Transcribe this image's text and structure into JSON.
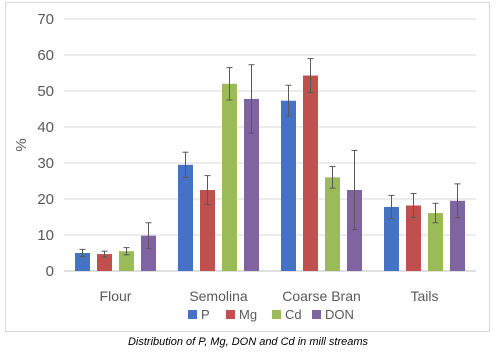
{
  "chart_data": {
    "type": "bar",
    "title": "",
    "ylabel": "%",
    "xlabel": "",
    "ylim": [
      0,
      70
    ],
    "yticks": [
      0,
      10,
      20,
      30,
      40,
      50,
      60,
      70
    ],
    "grid": true,
    "legend_position": "bottom",
    "categories": [
      "Flour",
      "Semolina",
      "Coarse Bran",
      "Tails"
    ],
    "series": [
      {
        "name": "P",
        "color": "#4472C4",
        "values": [
          5,
          29.5,
          47.3,
          17.8
        ],
        "errors": [
          1,
          3.5,
          4.3,
          3.2
        ]
      },
      {
        "name": "Mg",
        "color": "#C0504D",
        "values": [
          4.7,
          22.5,
          54.3,
          18.2
        ],
        "errors": [
          0.8,
          4,
          4.7,
          3.3
        ]
      },
      {
        "name": "Cd",
        "color": "#9BBB59",
        "values": [
          5.5,
          52,
          26,
          16.1
        ],
        "errors": [
          1,
          4.5,
          3,
          2.7
        ]
      },
      {
        "name": "DON",
        "color": "#8064A2",
        "values": [
          9.8,
          47.8,
          22.5,
          19.5
        ],
        "errors": [
          3.6,
          9.5,
          11,
          4.7
        ]
      }
    ]
  },
  "caption": "Distribution of P, Mg, DON and Cd in mill streams"
}
